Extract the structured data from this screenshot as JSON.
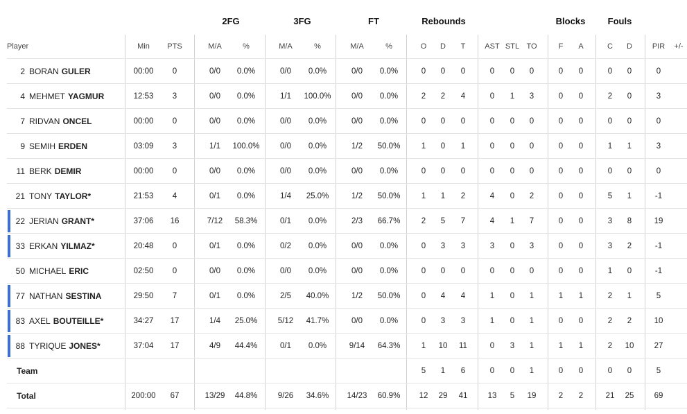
{
  "headers": {
    "groups": [
      {
        "key": "g2fg",
        "label": "2FG"
      },
      {
        "key": "g3fg",
        "label": "3FG"
      },
      {
        "key": "gft",
        "label": "FT"
      },
      {
        "key": "greb",
        "label": "Rebounds"
      },
      {
        "key": "gblk",
        "label": "Blocks"
      },
      {
        "key": "gfoul",
        "label": "Fouls"
      }
    ],
    "columns": [
      "Player",
      "Min",
      "PTS",
      "M/A",
      "%",
      "M/A",
      "%",
      "M/A",
      "%",
      "O",
      "D",
      "T",
      "AST",
      "STL",
      "TO",
      "F",
      "A",
      "C",
      "D",
      "PIR",
      "+/-"
    ]
  },
  "rows": [
    {
      "num": "2",
      "first": "BORAN",
      "last": "GULER",
      "marker": false,
      "values": [
        "00:00",
        "0",
        "0/0",
        "0.0%",
        "0/0",
        "0.0%",
        "0/0",
        "0.0%",
        "0",
        "0",
        "0",
        "0",
        "0",
        "0",
        "0",
        "0",
        "0",
        "0",
        "0",
        ""
      ]
    },
    {
      "num": "4",
      "first": "MEHMET",
      "last": "YAGMUR",
      "marker": false,
      "values": [
        "12:53",
        "3",
        "0/0",
        "0.0%",
        "1/1",
        "100.0%",
        "0/0",
        "0.0%",
        "2",
        "2",
        "4",
        "0",
        "1",
        "3",
        "0",
        "0",
        "2",
        "0",
        "3",
        ""
      ]
    },
    {
      "num": "7",
      "first": "RIDVAN",
      "last": "ONCEL",
      "marker": false,
      "values": [
        "00:00",
        "0",
        "0/0",
        "0.0%",
        "0/0",
        "0.0%",
        "0/0",
        "0.0%",
        "0",
        "0",
        "0",
        "0",
        "0",
        "0",
        "0",
        "0",
        "0",
        "0",
        "0",
        ""
      ]
    },
    {
      "num": "9",
      "first": "SEMIH",
      "last": "ERDEN",
      "marker": false,
      "values": [
        "03:09",
        "3",
        "1/1",
        "100.0%",
        "0/0",
        "0.0%",
        "1/2",
        "50.0%",
        "1",
        "0",
        "1",
        "0",
        "0",
        "0",
        "0",
        "0",
        "1",
        "1",
        "3",
        ""
      ]
    },
    {
      "num": "11",
      "first": "BERK",
      "last": "DEMIR",
      "marker": false,
      "values": [
        "00:00",
        "0",
        "0/0",
        "0.0%",
        "0/0",
        "0.0%",
        "0/0",
        "0.0%",
        "0",
        "0",
        "0",
        "0",
        "0",
        "0",
        "0",
        "0",
        "0",
        "0",
        "0",
        ""
      ]
    },
    {
      "num": "21",
      "first": "TONY",
      "last": "TAYLOR*",
      "marker": false,
      "values": [
        "21:53",
        "4",
        "0/1",
        "0.0%",
        "1/4",
        "25.0%",
        "1/2",
        "50.0%",
        "1",
        "1",
        "2",
        "4",
        "0",
        "2",
        "0",
        "0",
        "5",
        "1",
        "-1",
        ""
      ]
    },
    {
      "num": "22",
      "first": "JERIAN",
      "last": "GRANT*",
      "marker": true,
      "values": [
        "37:06",
        "16",
        "7/12",
        "58.3%",
        "0/1",
        "0.0%",
        "2/3",
        "66.7%",
        "2",
        "5",
        "7",
        "4",
        "1",
        "7",
        "0",
        "0",
        "3",
        "8",
        "19",
        ""
      ]
    },
    {
      "num": "33",
      "first": "ERKAN",
      "last": "YILMAZ*",
      "marker": true,
      "values": [
        "20:48",
        "0",
        "0/1",
        "0.0%",
        "0/2",
        "0.0%",
        "0/0",
        "0.0%",
        "0",
        "3",
        "3",
        "3",
        "0",
        "3",
        "0",
        "0",
        "3",
        "2",
        "-1",
        ""
      ]
    },
    {
      "num": "50",
      "first": "MICHAEL",
      "last": "ERIC",
      "marker": false,
      "values": [
        "02:50",
        "0",
        "0/0",
        "0.0%",
        "0/0",
        "0.0%",
        "0/0",
        "0.0%",
        "0",
        "0",
        "0",
        "0",
        "0",
        "0",
        "0",
        "0",
        "1",
        "0",
        "-1",
        ""
      ]
    },
    {
      "num": "77",
      "first": "NATHAN",
      "last": "SESTINA",
      "marker": true,
      "values": [
        "29:50",
        "7",
        "0/1",
        "0.0%",
        "2/5",
        "40.0%",
        "1/2",
        "50.0%",
        "0",
        "4",
        "4",
        "1",
        "0",
        "1",
        "1",
        "1",
        "2",
        "1",
        "5",
        ""
      ]
    },
    {
      "num": "83",
      "first": "AXEL",
      "last": "BOUTEILLE*",
      "marker": true,
      "values": [
        "34:27",
        "17",
        "1/4",
        "25.0%",
        "5/12",
        "41.7%",
        "0/0",
        "0.0%",
        "0",
        "3",
        "3",
        "1",
        "0",
        "1",
        "0",
        "0",
        "2",
        "2",
        "10",
        ""
      ]
    },
    {
      "num": "88",
      "first": "TYRIQUE",
      "last": "JONES*",
      "marker": true,
      "values": [
        "37:04",
        "17",
        "4/9",
        "44.4%",
        "0/1",
        "0.0%",
        "9/14",
        "64.3%",
        "1",
        "10",
        "11",
        "0",
        "3",
        "1",
        "1",
        "1",
        "2",
        "10",
        "27",
        ""
      ]
    }
  ],
  "team": {
    "label": "Team",
    "values": [
      "",
      "",
      "",
      "",
      "",
      "",
      "",
      "",
      "5",
      "1",
      "6",
      "0",
      "0",
      "1",
      "0",
      "0",
      "0",
      "0",
      "5",
      ""
    ]
  },
  "total": {
    "label": "Total",
    "values": [
      "200:00",
      "67",
      "13/29",
      "44.8%",
      "9/26",
      "34.6%",
      "14/23",
      "60.9%",
      "12",
      "29",
      "41",
      "13",
      "5",
      "19",
      "2",
      "2",
      "21",
      "25",
      "69",
      ""
    ]
  },
  "colors": {
    "marker": "#3a6fd8",
    "divider": "#d2d2d2",
    "rowline": "#e3e3e3"
  }
}
